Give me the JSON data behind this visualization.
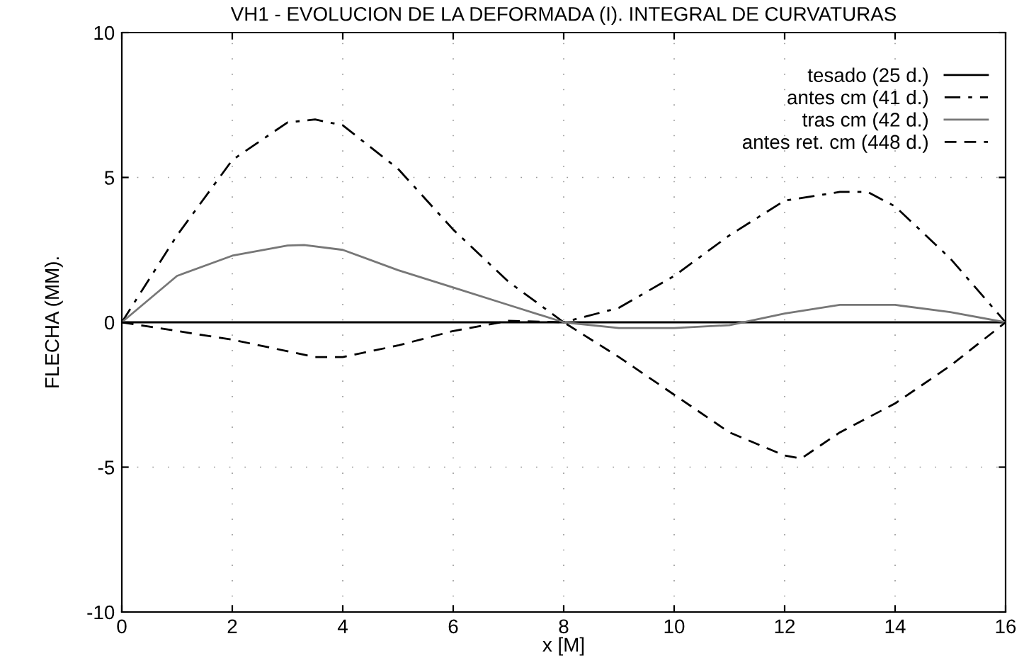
{
  "chart_data": {
    "type": "line",
    "title": "VH1 - EVOLUCION DE LA DEFORMADA (I). INTEGRAL DE CURVATURAS",
    "xlabel": "x [M]",
    "ylabel": "FLECHA (MM).",
    "xlim": [
      0,
      16
    ],
    "ylim": [
      -10,
      10
    ],
    "xticks": [
      0,
      2,
      4,
      6,
      8,
      10,
      12,
      14,
      16
    ],
    "yticks": [
      -10,
      -5,
      0,
      5,
      10
    ],
    "grid": true,
    "legend": "top right",
    "series": [
      {
        "name": "tesado (25 d.)",
        "color": "#000000",
        "line_style": "solid",
        "x": [
          0,
          16
        ],
        "values": [
          0,
          0
        ]
      },
      {
        "name": "antes cm (41 d.)",
        "color": "#000000",
        "line_style": "dashdot",
        "x": [
          0,
          1,
          2,
          3,
          3.5,
          4,
          5,
          6,
          7,
          8,
          9,
          10,
          11,
          12,
          13,
          13.5,
          14,
          15,
          16
        ],
        "values": [
          0,
          3.0,
          5.6,
          6.9,
          7.0,
          6.8,
          5.3,
          3.2,
          1.4,
          0,
          0.5,
          1.6,
          3.0,
          4.2,
          4.5,
          4.5,
          4.0,
          2.2,
          0
        ]
      },
      {
        "name": "tras cm (42 d.)",
        "color": "#777777",
        "line_style": "solid",
        "x": [
          0,
          1,
          2,
          3,
          3.3,
          4,
          5,
          6,
          7,
          8,
          9,
          10,
          11,
          12,
          13,
          14,
          15,
          16
        ],
        "values": [
          0,
          1.6,
          2.3,
          2.65,
          2.67,
          2.5,
          1.8,
          1.2,
          0.6,
          0,
          -0.2,
          -0.2,
          -0.1,
          0.3,
          0.6,
          0.6,
          0.35,
          0
        ]
      },
      {
        "name": "antes ret. cm (448 d.)",
        "color": "#000000",
        "line_style": "dashed",
        "x": [
          0,
          1,
          2,
          3,
          3.5,
          4,
          5,
          6,
          7,
          8,
          9,
          10,
          11,
          12,
          12.3,
          13,
          14,
          15,
          16
        ],
        "values": [
          0,
          -0.3,
          -0.6,
          -1.0,
          -1.2,
          -1.2,
          -0.8,
          -0.3,
          0.05,
          0,
          -1.2,
          -2.5,
          -3.8,
          -4.6,
          -4.7,
          -3.8,
          -2.8,
          -1.5,
          0
        ]
      }
    ]
  }
}
